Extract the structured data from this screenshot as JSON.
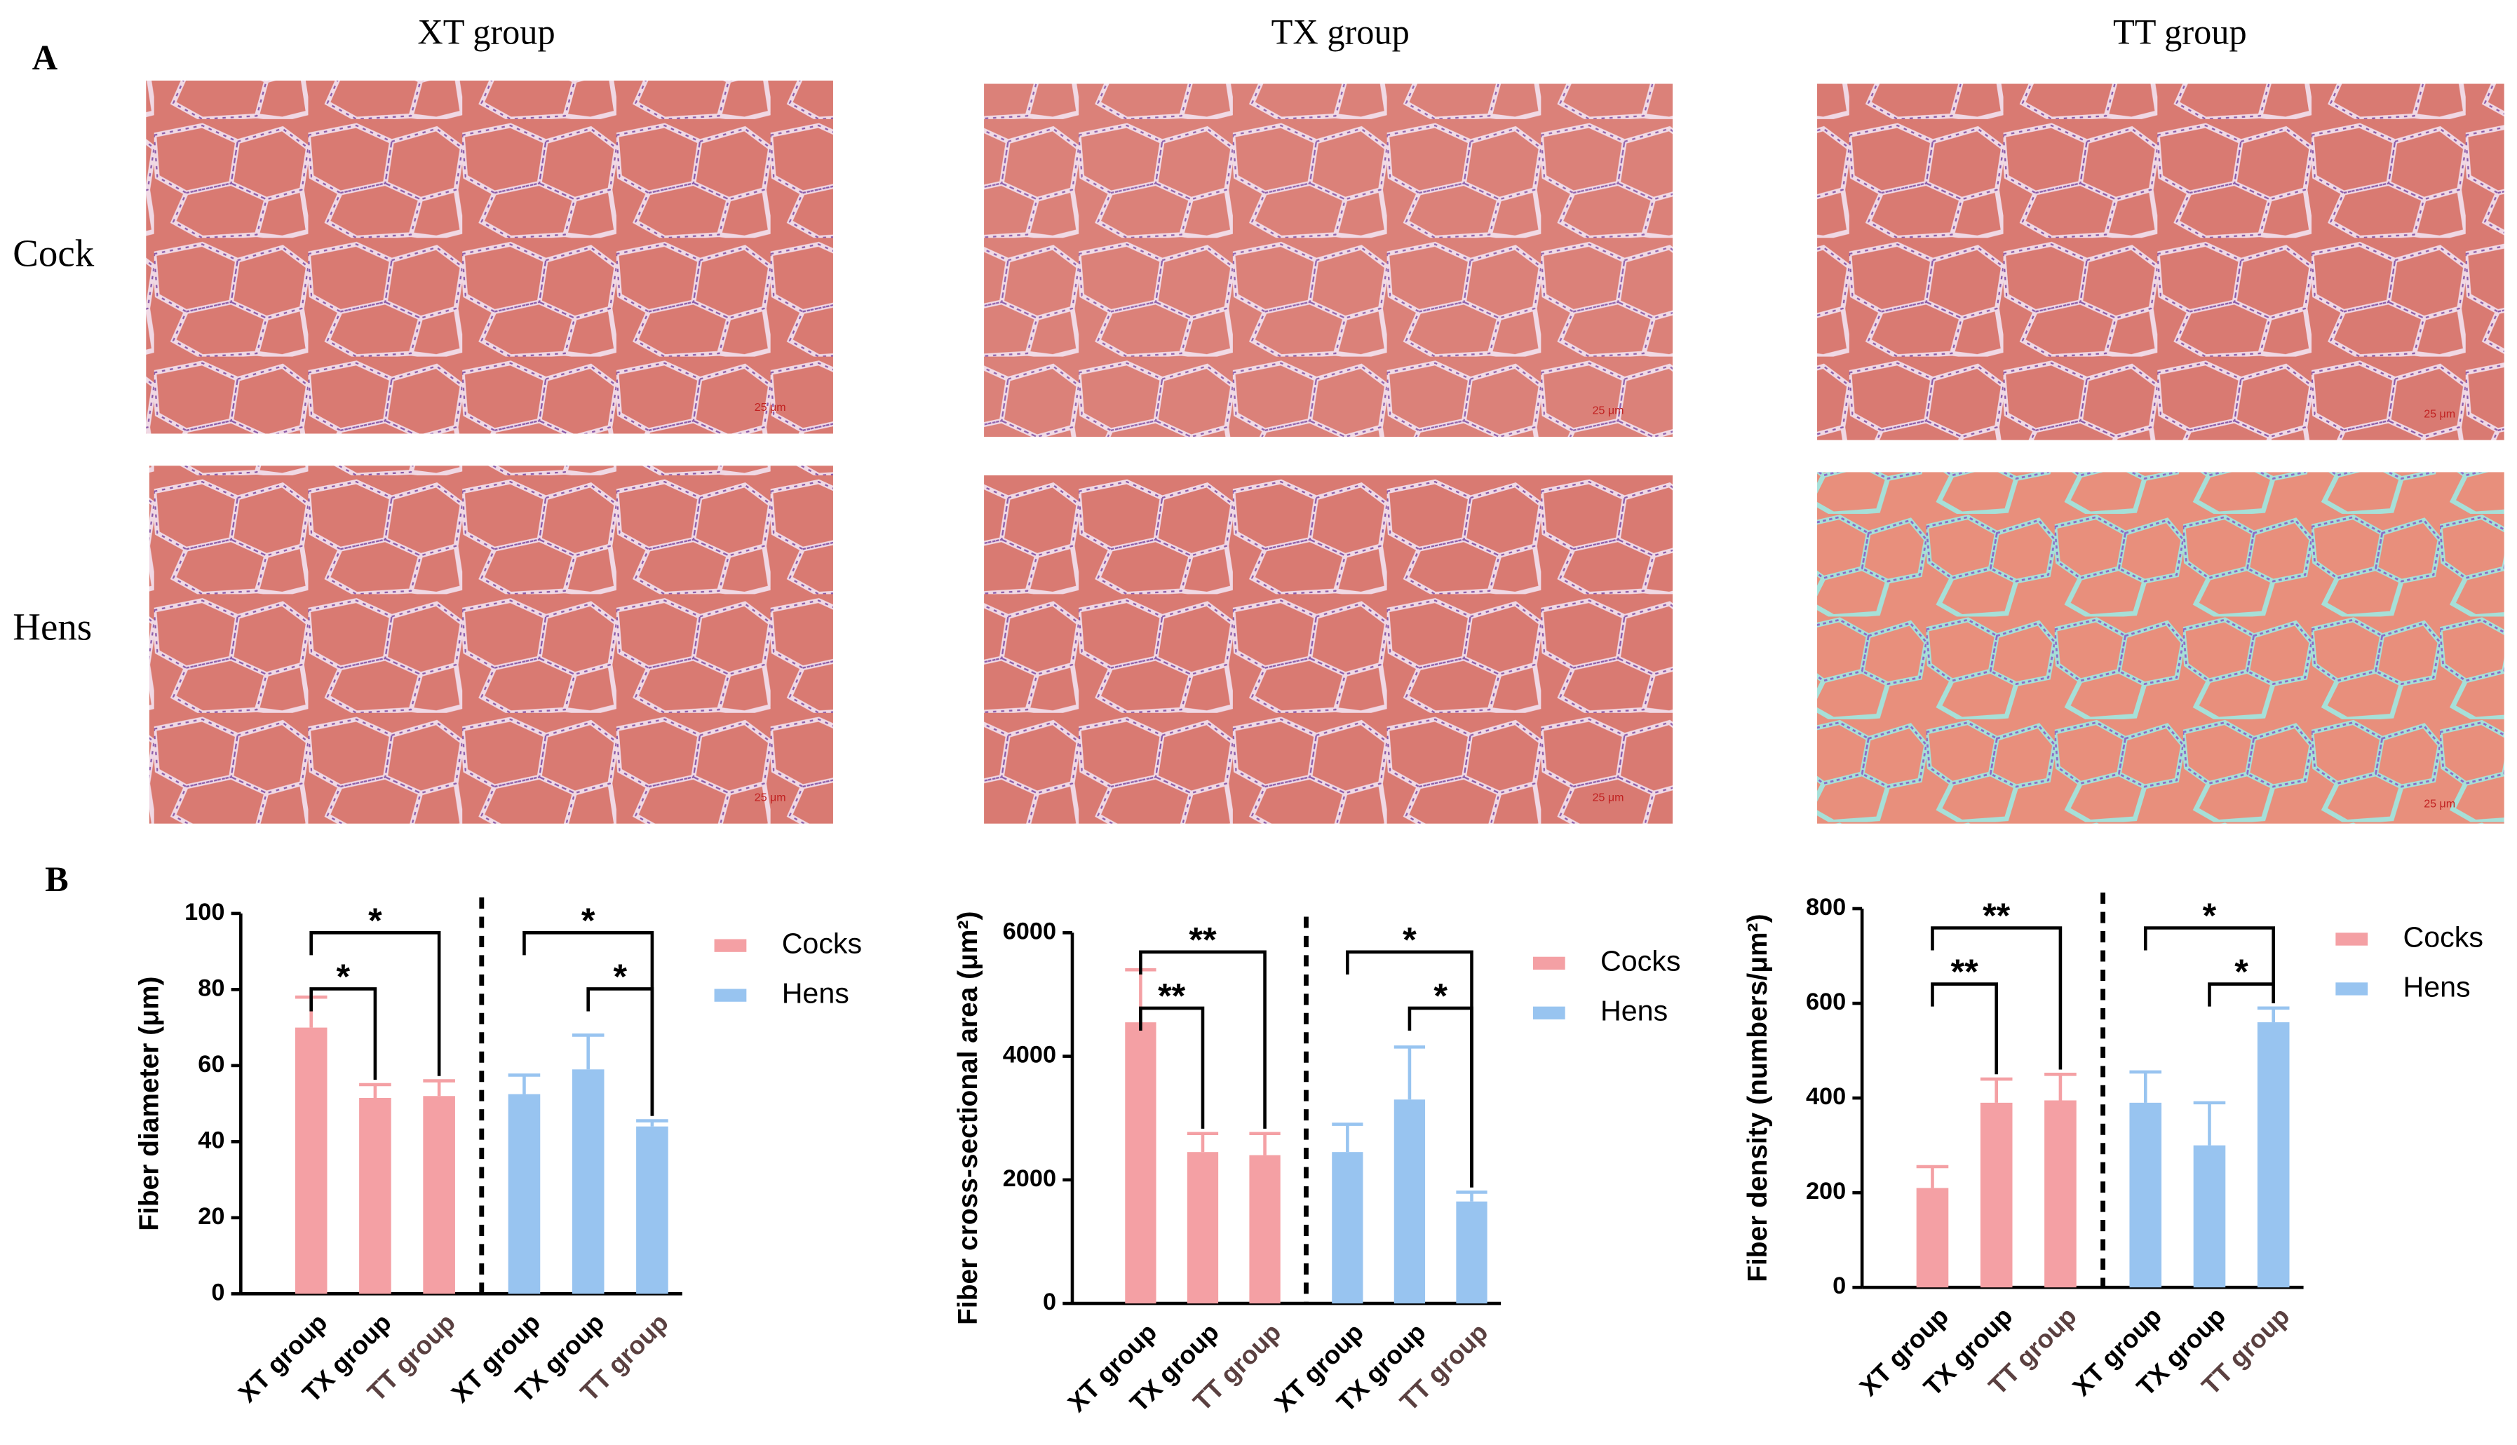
{
  "panel_a": {
    "label": "A",
    "columns": [
      "XT group",
      "TX group",
      "TT group"
    ],
    "rows": [
      "Cock",
      "Hens"
    ],
    "scale_bar": "25 μm"
  },
  "panel_b": {
    "label": "B"
  },
  "chart_data": [
    {
      "type": "bar",
      "ylabel": "Fiber diameter (μm)",
      "categories": [
        "XT group",
        "TX group",
        "TT group",
        "XT group",
        "TX group",
        "TT group"
      ],
      "series": [
        {
          "name": "Cocks",
          "color": "#f4a0a4",
          "values": [
            70,
            51.5,
            52,
            null,
            null,
            null
          ],
          "errors": [
            8,
            3.5,
            4,
            null,
            null,
            null
          ]
        },
        {
          "name": "Hens",
          "color": "#98c4f0",
          "values": [
            null,
            null,
            null,
            52.5,
            59,
            44
          ],
          "errors": [
            null,
            null,
            null,
            5,
            9,
            1.5
          ]
        }
      ],
      "ylim": [
        0,
        100
      ],
      "yticks": [
        0,
        20,
        40,
        60,
        80,
        100
      ],
      "annotations": [
        {
          "text": "*",
          "from": 0,
          "to": 1
        },
        {
          "text": "*",
          "from": 0,
          "to": 2
        },
        {
          "text": "*",
          "from": 3,
          "to": 5
        },
        {
          "text": "*",
          "from": 4,
          "to": 5
        }
      ]
    },
    {
      "type": "bar",
      "ylabel": "Fiber cross-sectional area (μm²)",
      "categories": [
        "XT group",
        "TX group",
        "TT group",
        "XT group",
        "TX group",
        "TT group"
      ],
      "series": [
        {
          "name": "Cocks",
          "color": "#f4a0a4",
          "values": [
            4550,
            2450,
            2400,
            null,
            null,
            null
          ],
          "errors": [
            850,
            300,
            350,
            null,
            null,
            null
          ]
        },
        {
          "name": "Hens",
          "color": "#98c4f0",
          "values": [
            null,
            null,
            null,
            2450,
            3300,
            1650
          ],
          "errors": [
            null,
            null,
            null,
            450,
            850,
            150
          ]
        }
      ],
      "ylim": [
        0,
        6000
      ],
      "yticks": [
        0,
        2000,
        4000,
        6000
      ],
      "annotations": [
        {
          "text": "**",
          "from": 0,
          "to": 1
        },
        {
          "text": "**",
          "from": 0,
          "to": 2
        },
        {
          "text": "*",
          "from": 3,
          "to": 5
        },
        {
          "text": "*",
          "from": 4,
          "to": 5
        }
      ]
    },
    {
      "type": "bar",
      "ylabel": "Fiber density (numbers/μm²)",
      "categories": [
        "XT group",
        "TX group",
        "TT group",
        "XT group",
        "TX group",
        "TT group"
      ],
      "series": [
        {
          "name": "Cocks",
          "color": "#f4a0a4",
          "values": [
            210,
            390,
            395,
            null,
            null,
            null
          ],
          "errors": [
            45,
            50,
            55,
            null,
            null,
            null
          ]
        },
        {
          "name": "Hens",
          "color": "#98c4f0",
          "values": [
            null,
            null,
            null,
            390,
            300,
            560
          ],
          "errors": [
            null,
            null,
            null,
            65,
            90,
            30
          ]
        }
      ],
      "ylim": [
        0,
        800
      ],
      "yticks": [
        0,
        200,
        400,
        600,
        800
      ],
      "annotations": [
        {
          "text": "**",
          "from": 0,
          "to": 1
        },
        {
          "text": "**",
          "from": 0,
          "to": 2
        },
        {
          "text": "*",
          "from": 3,
          "to": 5
        },
        {
          "text": "*",
          "from": 4,
          "to": 5
        }
      ]
    }
  ]
}
